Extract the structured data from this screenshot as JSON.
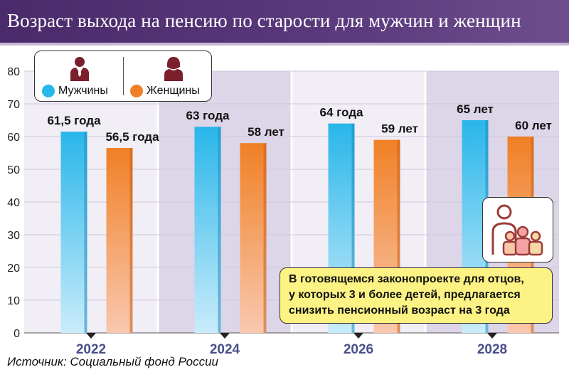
{
  "header": {
    "title": "Возраст выхода на пенсию по старости для мужчин и женщин"
  },
  "legend": {
    "men_label": "Мужчины",
    "women_label": "Женщины",
    "men_icon": "man-icon",
    "women_icon": "woman-icon"
  },
  "note": {
    "lines": [
      "В готовящемся законопроекте для отцов,",
      "у которых 3 и более детей, предлагается",
      "снизить пенсионный возраст на 3 года"
    ],
    "icon": "family-icon"
  },
  "source": "Источник: Социальный фонд России",
  "colors": {
    "men": "#29b6ea",
    "women": "#f08025",
    "panel_light": "#f1eef6",
    "panel_dark": "#ddd5e8",
    "title_bg": "#4a2a6b",
    "note_bg": "#fdf384",
    "year_text": "#4a4e8a"
  },
  "chart_data": {
    "type": "bar",
    "title": "Возраст выхода на пенсию по старости для мужчин и женщин",
    "categories": [
      "2022",
      "2024",
      "2026",
      "2028"
    ],
    "series": [
      {
        "name": "Мужчины",
        "values": [
          61.5,
          63,
          64,
          65
        ],
        "labels": [
          "61,5 года",
          "63 года",
          "64 года",
          "65 лет"
        ]
      },
      {
        "name": "Женщины",
        "values": [
          56.5,
          58,
          59,
          60
        ],
        "labels": [
          "56,5 года",
          "58 лет",
          "59 лет",
          "60 лет"
        ]
      }
    ],
    "yticks": [
      "0",
      "10",
      "20",
      "30",
      "40",
      "50",
      "60",
      "70",
      "80"
    ],
    "ylim": [
      0,
      80
    ],
    "grid": true,
    "legend_position": "top-left"
  }
}
